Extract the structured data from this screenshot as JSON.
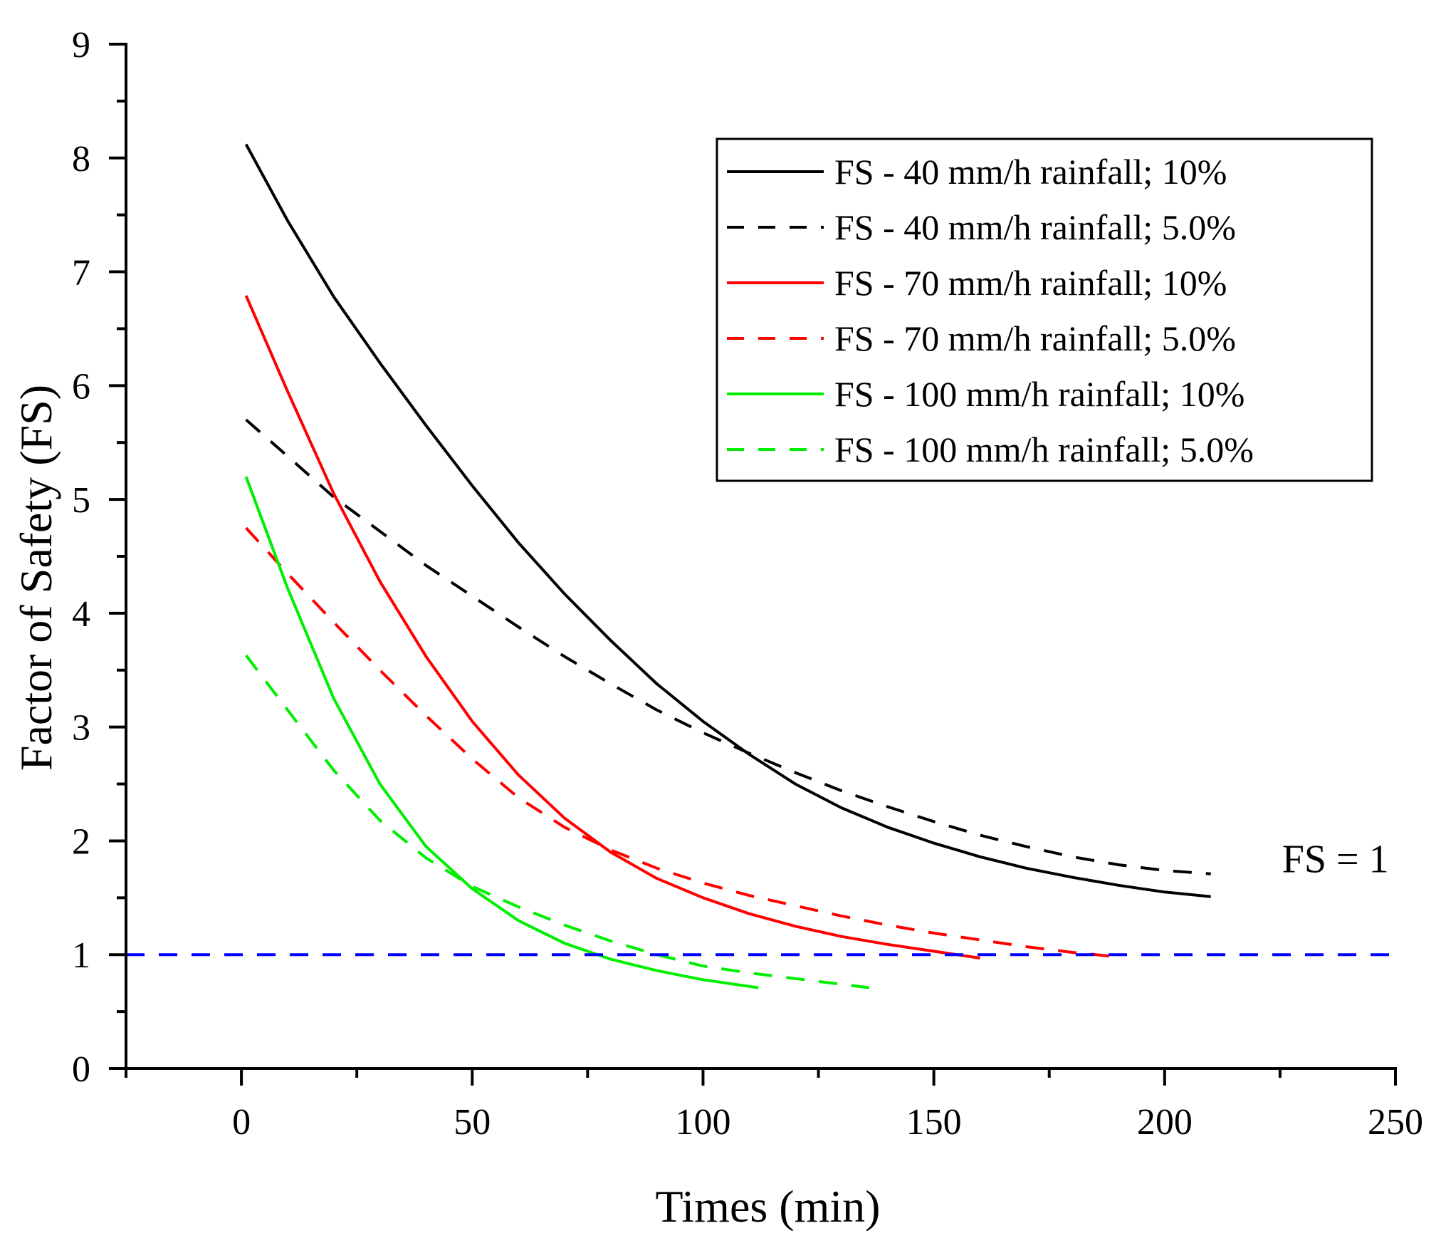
{
  "chart_data": {
    "type": "line",
    "title": "",
    "xlabel": "Times (min)",
    "ylabel": "Factor of Safety (FS)",
    "xlim": [
      -25,
      250
    ],
    "ylim": [
      0,
      9
    ],
    "x_ticks": [
      0,
      50,
      100,
      150,
      200,
      250
    ],
    "y_ticks": [
      0,
      1,
      2,
      3,
      4,
      5,
      6,
      7,
      8,
      9
    ],
    "grid": false,
    "legend_position": "top-right",
    "series": [
      {
        "name": "FS - 40 mm/h rainfall; 10%",
        "color": "#000000",
        "dash": "solid",
        "points": [
          [
            1,
            8.12
          ],
          [
            10,
            7.45
          ],
          [
            20,
            6.78
          ],
          [
            30,
            6.2
          ],
          [
            40,
            5.65
          ],
          [
            50,
            5.12
          ],
          [
            60,
            4.62
          ],
          [
            70,
            4.17
          ],
          [
            80,
            3.76
          ],
          [
            90,
            3.38
          ],
          [
            100,
            3.05
          ],
          [
            110,
            2.76
          ],
          [
            120,
            2.5
          ],
          [
            130,
            2.29
          ],
          [
            140,
            2.12
          ],
          [
            150,
            1.98
          ],
          [
            160,
            1.86
          ],
          [
            170,
            1.76
          ],
          [
            180,
            1.68
          ],
          [
            190,
            1.61
          ],
          [
            200,
            1.55
          ],
          [
            210,
            1.51
          ]
        ]
      },
      {
        "name": "FS - 40 mm/h rainfall; 5.0%",
        "color": "#000000",
        "dash": "dashed",
        "points": [
          [
            1,
            5.7
          ],
          [
            10,
            5.38
          ],
          [
            20,
            5.02
          ],
          [
            30,
            4.72
          ],
          [
            40,
            4.42
          ],
          [
            50,
            4.15
          ],
          [
            60,
            3.88
          ],
          [
            70,
            3.62
          ],
          [
            80,
            3.38
          ],
          [
            90,
            3.15
          ],
          [
            100,
            2.95
          ],
          [
            110,
            2.77
          ],
          [
            120,
            2.6
          ],
          [
            130,
            2.44
          ],
          [
            140,
            2.3
          ],
          [
            150,
            2.17
          ],
          [
            160,
            2.05
          ],
          [
            170,
            1.95
          ],
          [
            180,
            1.86
          ],
          [
            190,
            1.79
          ],
          [
            200,
            1.74
          ],
          [
            210,
            1.71
          ]
        ]
      },
      {
        "name": "FS - 70 mm/h rainfall; 10%",
        "color": "#ff0000",
        "dash": "solid",
        "points": [
          [
            1,
            6.79
          ],
          [
            10,
            5.95
          ],
          [
            20,
            5.05
          ],
          [
            30,
            4.28
          ],
          [
            40,
            3.62
          ],
          [
            50,
            3.05
          ],
          [
            60,
            2.58
          ],
          [
            70,
            2.2
          ],
          [
            80,
            1.9
          ],
          [
            90,
            1.67
          ],
          [
            100,
            1.5
          ],
          [
            110,
            1.36
          ],
          [
            120,
            1.25
          ],
          [
            130,
            1.16
          ],
          [
            140,
            1.09
          ],
          [
            150,
            1.03
          ],
          [
            160,
            0.97
          ]
        ]
      },
      {
        "name": "FS - 70 mm/h rainfall; 5.0%",
        "color": "#ff0000",
        "dash": "dashed",
        "points": [
          [
            1,
            4.75
          ],
          [
            10,
            4.35
          ],
          [
            20,
            3.92
          ],
          [
            30,
            3.5
          ],
          [
            40,
            3.1
          ],
          [
            50,
            2.72
          ],
          [
            60,
            2.38
          ],
          [
            70,
            2.12
          ],
          [
            80,
            1.92
          ],
          [
            90,
            1.76
          ],
          [
            100,
            1.63
          ],
          [
            110,
            1.52
          ],
          [
            120,
            1.43
          ],
          [
            130,
            1.34
          ],
          [
            140,
            1.26
          ],
          [
            150,
            1.19
          ],
          [
            160,
            1.13
          ],
          [
            170,
            1.07
          ],
          [
            180,
            1.02
          ],
          [
            190,
            0.98
          ]
        ]
      },
      {
        "name": "FS - 100 mm/h rainfall; 10%",
        "color": "#00ee00",
        "dash": "solid",
        "points": [
          [
            1,
            5.2
          ],
          [
            10,
            4.22
          ],
          [
            20,
            3.25
          ],
          [
            30,
            2.5
          ],
          [
            40,
            1.95
          ],
          [
            50,
            1.58
          ],
          [
            60,
            1.3
          ],
          [
            70,
            1.1
          ],
          [
            80,
            0.96
          ],
          [
            90,
            0.86
          ],
          [
            100,
            0.78
          ],
          [
            112,
            0.71
          ]
        ]
      },
      {
        "name": "FS - 100 mm/h rainfall; 5.0%",
        "color": "#00ee00",
        "dash": "dashed",
        "points": [
          [
            1,
            3.63
          ],
          [
            10,
            3.15
          ],
          [
            20,
            2.62
          ],
          [
            30,
            2.18
          ],
          [
            40,
            1.85
          ],
          [
            50,
            1.6
          ],
          [
            60,
            1.42
          ],
          [
            70,
            1.26
          ],
          [
            80,
            1.12
          ],
          [
            90,
            1.0
          ],
          [
            100,
            0.9
          ],
          [
            110,
            0.84
          ],
          [
            120,
            0.79
          ],
          [
            136,
            0.71
          ]
        ]
      },
      {
        "name": "",
        "color": "#0000ff",
        "dash": "dashed",
        "points": [
          [
            -25,
            1
          ],
          [
            250,
            1
          ]
        ]
      }
    ],
    "annotations": [
      {
        "text": "FS = 1",
        "x": 237,
        "y": 1.85
      }
    ]
  }
}
